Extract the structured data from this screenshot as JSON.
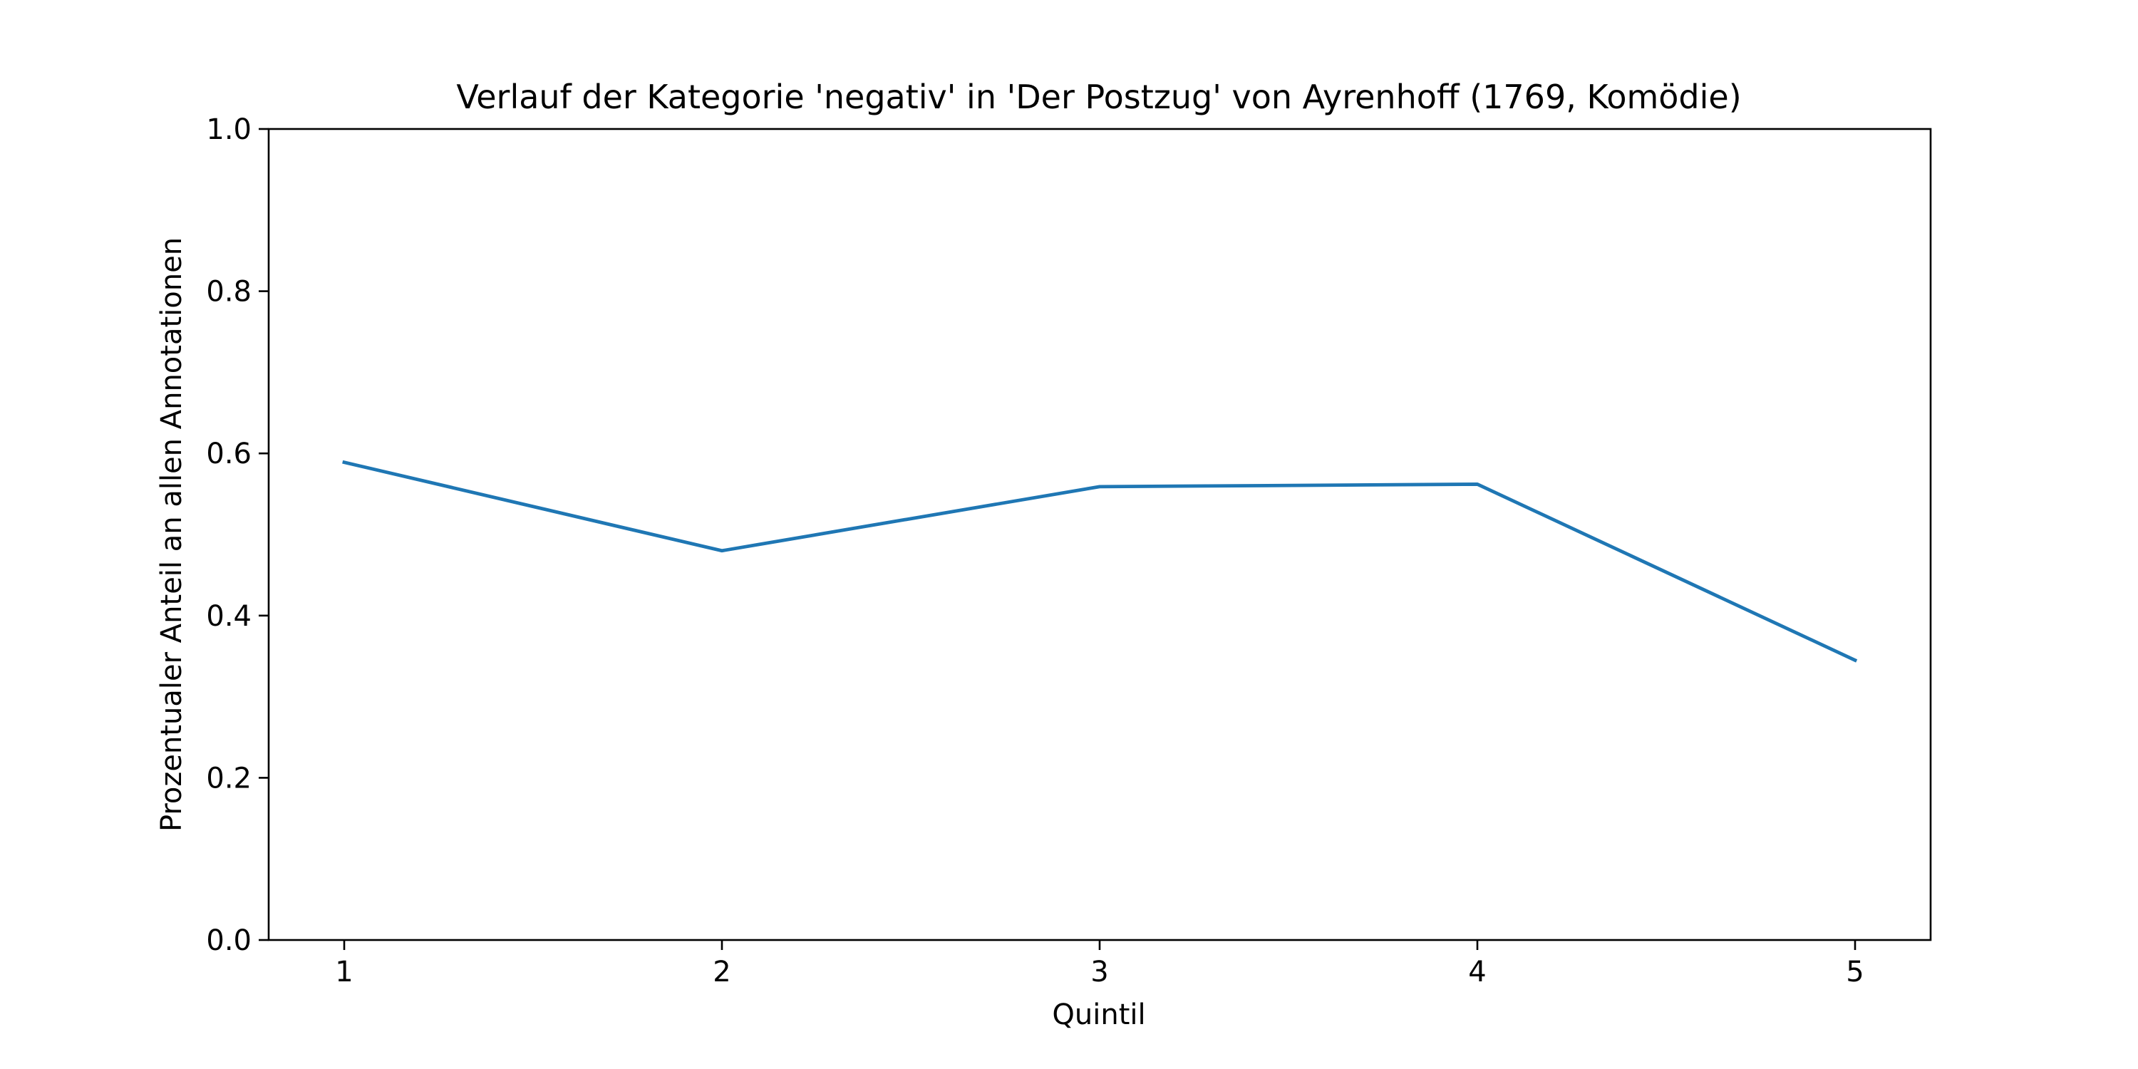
{
  "chart_data": {
    "type": "line",
    "title": "Verlauf der Kategorie 'negativ' in 'Der Postzug' von Ayrenhoff (1769, Komödie)",
    "xlabel": "Quintil",
    "ylabel": "Prozentualer Anteil an allen Annotationen",
    "x": [
      1,
      2,
      3,
      4,
      5
    ],
    "xticks": [
      "1",
      "2",
      "3",
      "4",
      "5"
    ],
    "xlim": [
      0.8,
      5.2
    ],
    "yticks": [
      "0.0",
      "0.2",
      "0.4",
      "0.6",
      "0.8",
      "1.0"
    ],
    "ylim": [
      0,
      1
    ],
    "grid": false,
    "series": [
      {
        "values": [
          0.589,
          0.48,
          0.559,
          0.562,
          0.345
        ],
        "color": "#1f77b4"
      }
    ]
  }
}
